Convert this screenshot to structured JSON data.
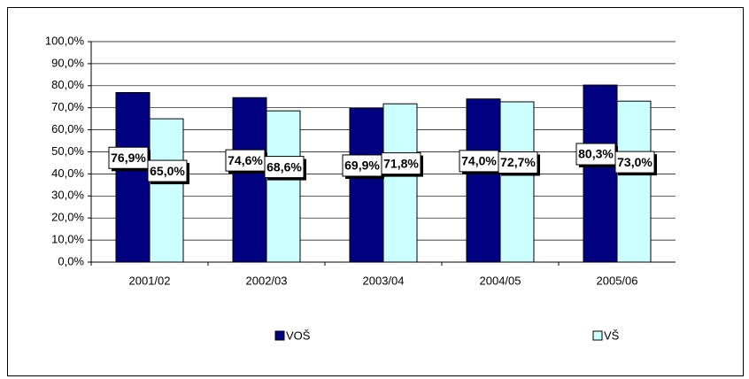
{
  "chart_data": {
    "type": "bar",
    "categories": [
      "2001/02",
      "2002/03",
      "2003/04",
      "2004/05",
      "2005/06"
    ],
    "series": [
      {
        "name": "VOŠ",
        "color": "#000080",
        "values": [
          76.9,
          74.6,
          69.9,
          74.0,
          80.3
        ],
        "value_labels": [
          "76,9%",
          "74,6%",
          "69,9%",
          "74,0%",
          "80,3%"
        ]
      },
      {
        "name": "VŠ",
        "color": "#ccffff",
        "values": [
          65.0,
          68.6,
          71.8,
          72.7,
          73.0
        ],
        "value_labels": [
          "65,0%",
          "68,6%",
          "71,8%",
          "72,7%",
          "73,0%"
        ]
      }
    ],
    "ylim": [
      0,
      100
    ],
    "yticks": [
      {
        "value": 0,
        "label": "0,0%"
      },
      {
        "value": 10,
        "label": "10,0%"
      },
      {
        "value": 20,
        "label": "20,0%"
      },
      {
        "value": 30,
        "label": "30,0%"
      },
      {
        "value": 40,
        "label": "40,0%"
      },
      {
        "value": 50,
        "label": "50,0%"
      },
      {
        "value": 60,
        "label": "60,0%"
      },
      {
        "value": 70,
        "label": "70,0%"
      },
      {
        "value": 80,
        "label": "80,0%"
      },
      {
        "value": 90,
        "label": "90,0%"
      },
      {
        "value": 100,
        "label": "100,0%"
      }
    ],
    "grid": true,
    "legend": "bottom"
  }
}
